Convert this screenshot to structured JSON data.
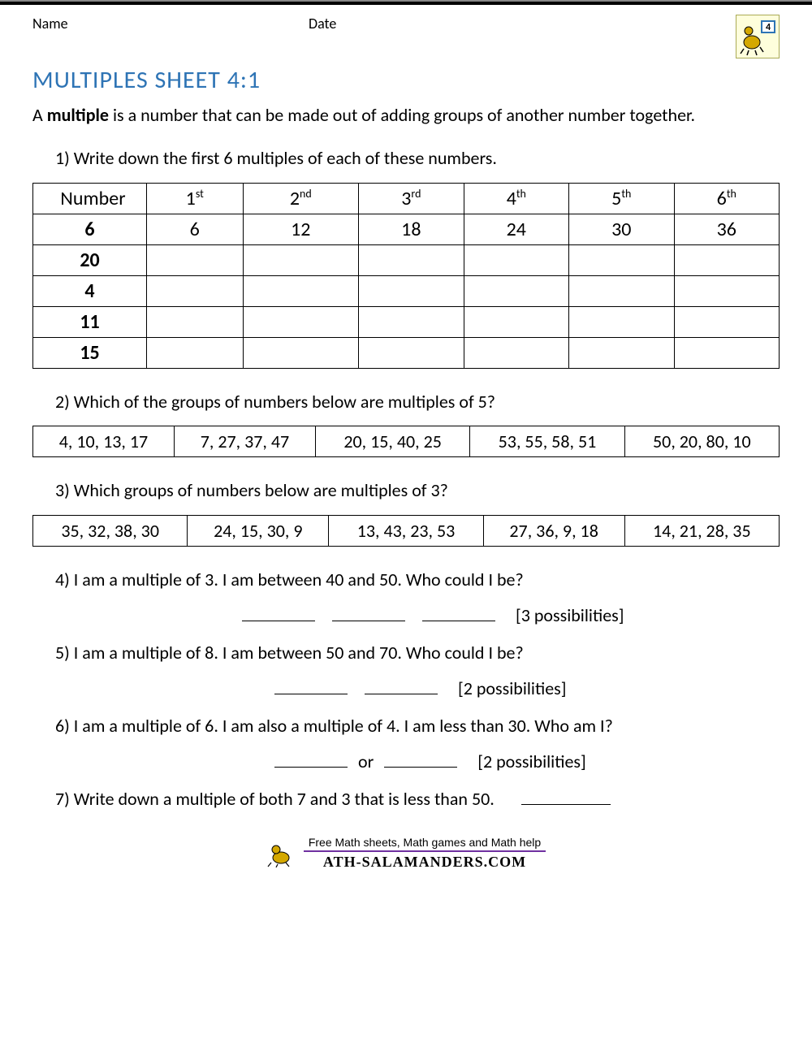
{
  "header": {
    "name_label": "Name",
    "date_label": "Date",
    "badge_number": "4"
  },
  "title": "MULTIPLES SHEET 4:1",
  "intro_before_bold": "A ",
  "intro_bold": "multiple",
  "intro_after_bold": " is a number that can be made out of adding groups of another number together.",
  "q1": {
    "text": "1) Write down the first 6 multiples of each of these numbers.",
    "header_number": "Number",
    "ordinals": [
      {
        "n": "1",
        "sup": "st"
      },
      {
        "n": "2",
        "sup": "nd"
      },
      {
        "n": "3",
        "sup": "rd"
      },
      {
        "n": "4",
        "sup": "th"
      },
      {
        "n": "5",
        "sup": "th"
      },
      {
        "n": "6",
        "sup": "th"
      }
    ],
    "rows": [
      {
        "num": "6",
        "cells": [
          "6",
          "12",
          "18",
          "24",
          "30",
          "36"
        ]
      },
      {
        "num": "20",
        "cells": [
          "",
          "",
          "",
          "",
          "",
          ""
        ]
      },
      {
        "num": "4",
        "cells": [
          "",
          "",
          "",
          "",
          "",
          ""
        ]
      },
      {
        "num": "11",
        "cells": [
          "",
          "",
          "",
          "",
          "",
          ""
        ]
      },
      {
        "num": "15",
        "cells": [
          "",
          "",
          "",
          "",
          "",
          ""
        ]
      }
    ]
  },
  "q2": {
    "text": "2) Which of the groups of numbers below are multiples of 5?",
    "groups": [
      "4, 10, 13, 17",
      "7, 27, 37, 47",
      "20, 15, 40, 25",
      "53, 55, 58, 51",
      "50, 20, 80, 10"
    ]
  },
  "q3": {
    "text": "3) Which groups of numbers below are multiples of 3?",
    "groups": [
      "35, 32, 38, 30",
      "24, 15, 30, 9",
      "13, 43, 23, 53",
      "27, 36, 9, 18",
      "14, 21, 28, 35"
    ]
  },
  "q4": {
    "text": "4) I am a multiple of 3. I am between 40 and 50. Who could I be?",
    "hint": "[3 possibilities]"
  },
  "q5": {
    "text": "5) I am a multiple of 8. I am between 50 and 70. Who could I be?",
    "hint": "[2 possibilities]"
  },
  "q6": {
    "text": "6) I am a multiple of 6. I am also a multiple of 4. I am less than 30. Who am I?",
    "or": "or",
    "hint": "[2 possibilities]"
  },
  "q7": {
    "text": "7) Write down a multiple of both 7 and 3 that is less than 50."
  },
  "footer": {
    "line1": "Free Math sheets, Math games and Math help",
    "line2": "ATH-SALAMANDERS.COM"
  },
  "colors": {
    "title": "#2e74b5",
    "underline": "#7030a0",
    "badge_bg": "#fefedc",
    "badge_border": "#aaaa55"
  }
}
